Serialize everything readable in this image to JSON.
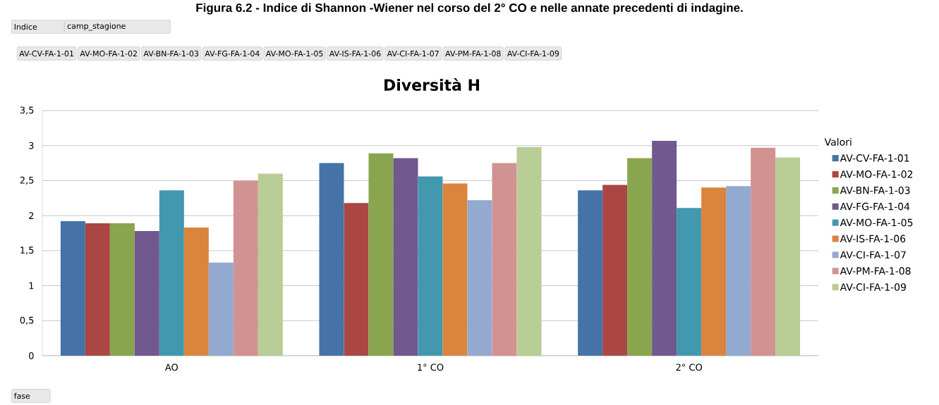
{
  "chart_data": {
    "type": "bar",
    "title": "Diversità H",
    "legend_title": "Valori",
    "categories": [
      "AO",
      "1° CO",
      "2° CO"
    ],
    "series": [
      {
        "name": "AV-CV-FA-1-01",
        "color": "#4572a7",
        "values": [
          1.92,
          2.75,
          2.36
        ]
      },
      {
        "name": "AV-MO-FA-1-02",
        "color": "#aa4643",
        "values": [
          1.89,
          2.18,
          2.44
        ]
      },
      {
        "name": "AV-BN-FA-1-03",
        "color": "#89a54e",
        "values": [
          1.89,
          2.89,
          2.82
        ]
      },
      {
        "name": "AV-FG-FA-1-04",
        "color": "#71588f",
        "values": [
          1.78,
          2.82,
          3.07
        ]
      },
      {
        "name": "AV-MO-FA-1-05",
        "color": "#4198af",
        "values": [
          2.36,
          2.56,
          2.11
        ]
      },
      {
        "name": "AV-IS-FA-1-06",
        "color": "#db843d",
        "values": [
          1.83,
          2.46,
          2.4
        ]
      },
      {
        "name": "AV-CI-FA-1-07",
        "color": "#93a9cf",
        "values": [
          1.33,
          2.22,
          2.42
        ]
      },
      {
        "name": "AV-PM-FA-1-08",
        "color": "#d19392",
        "values": [
          2.5,
          2.75,
          2.97
        ]
      },
      {
        "name": "AV-CI-FA-1-09",
        "color": "#b9cd96",
        "values": [
          2.6,
          2.98,
          2.83
        ]
      }
    ],
    "ylim": [
      0,
      3.5
    ],
    "yticks": [
      0,
      {
        "value": 0.5,
        "label": "0,5"
      },
      1,
      {
        "value": 1.5,
        "label": "1,5"
      },
      2,
      {
        "value": 2.5,
        "label": "2,5"
      },
      3,
      {
        "value": 3.5,
        "label": "3,5"
      }
    ],
    "grid": "y",
    "legend": "right",
    "annotations": [
      "Figura 6.2 - Indice di Shannon -Wiener nel corso del 2° CO e nelle annate precedenti di indagine.",
      "Indice",
      "camp_stagione",
      "AV-CV-FA-1-01",
      "AV-MO-FA-1-02",
      "AV-BN-FA-1-03",
      "AV-FG-FA-1-04",
      "AV-MO-FA-1-05",
      "AV-IS-FA-1-06",
      "AV-CI-FA-1-07",
      "AV-PM-FA-1-08",
      "AV-CI-FA-1-09",
      "fase"
    ]
  }
}
